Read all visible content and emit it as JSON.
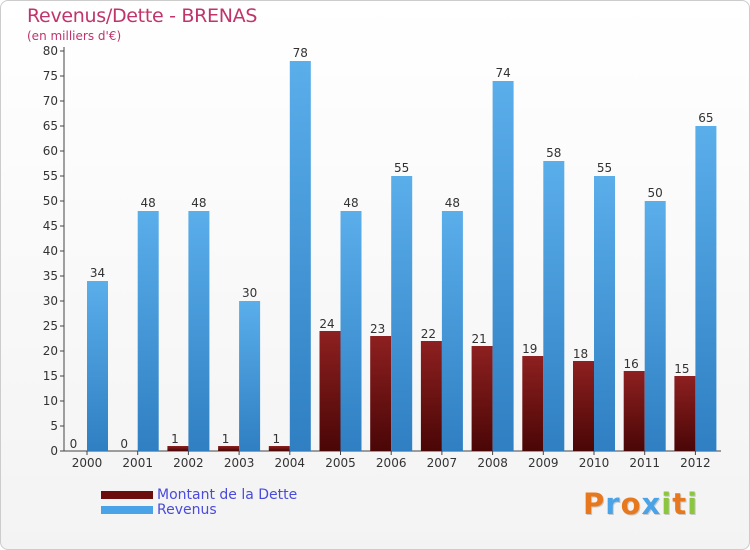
{
  "header": {
    "title": "Revenus/Dette - BRENAS",
    "subtitle": "(en milliers d'€)"
  },
  "colors": {
    "dette": "#7a1010",
    "revenus": "#4aa3e6",
    "title": "#c0346b",
    "legend_text": "#4a4adb"
  },
  "legend": {
    "items": [
      {
        "label": "Montant de la Dette",
        "color": "#6b0d0d"
      },
      {
        "label": "Revenus",
        "color": "#4aa3e6"
      }
    ]
  },
  "logo": {
    "text": "Proxiti",
    "letters": [
      {
        "ch": "P",
        "color": "#e8781e"
      },
      {
        "ch": "r",
        "color": "#4aa3e6"
      },
      {
        "ch": "o",
        "color": "#e8781e"
      },
      {
        "ch": "x",
        "color": "#4aa3e6"
      },
      {
        "ch": "i",
        "color": "#8cc63f"
      },
      {
        "ch": "t",
        "color": "#e8781e"
      },
      {
        "ch": "i",
        "color": "#8cc63f"
      }
    ]
  },
  "chart_data": {
    "type": "bar",
    "title": "Revenus/Dette - BRENAS",
    "subtitle": "(en milliers d'€)",
    "categories": [
      "2000",
      "2001",
      "2002",
      "2003",
      "2004",
      "2005",
      "2006",
      "2007",
      "2008",
      "2009",
      "2010",
      "2011",
      "2012"
    ],
    "series": [
      {
        "name": "Montant de la Dette",
        "values": [
          0,
          0,
          1,
          1,
          1,
          24,
          23,
          22,
          21,
          19,
          18,
          16,
          15
        ]
      },
      {
        "name": "Revenus",
        "values": [
          34,
          48,
          48,
          30,
          78,
          48,
          55,
          48,
          74,
          58,
          55,
          50,
          65
        ]
      }
    ],
    "ylim": [
      0,
      80
    ],
    "yticks": [
      0,
      5,
      10,
      15,
      20,
      25,
      30,
      35,
      40,
      45,
      50,
      55,
      60,
      65,
      70,
      75,
      80
    ],
    "grid": false,
    "legend_position": "bottom-left"
  }
}
